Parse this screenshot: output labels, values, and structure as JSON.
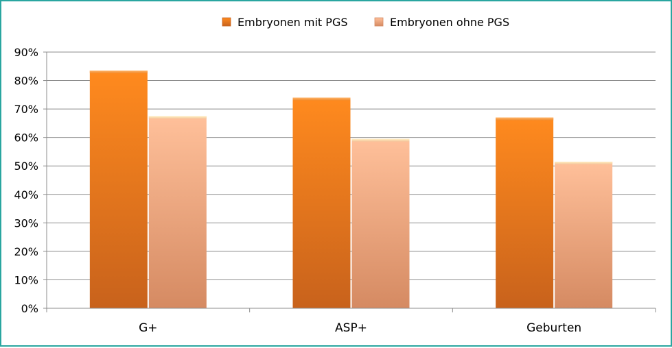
{
  "chart_data": {
    "type": "bar",
    "categories": [
      "G+",
      "ASP+",
      "Geburten"
    ],
    "series": [
      {
        "name": "Embryonen mit PGS",
        "values": [
          83.5,
          74,
          67
        ],
        "color": "#f08a2c"
      },
      {
        "name": "Embryonen ohne PGS",
        "values": [
          67.5,
          59.5,
          51.5
        ],
        "color": "#f8b68a"
      }
    ],
    "ylim": [
      0,
      90
    ],
    "yticks": [
      "0%",
      "10%",
      "20%",
      "30%",
      "40%",
      "50%",
      "60%",
      "70%",
      "80%",
      "90%"
    ],
    "grid": true,
    "legend_position": "top-center",
    "title": "",
    "xlabel": "",
    "ylabel": ""
  }
}
